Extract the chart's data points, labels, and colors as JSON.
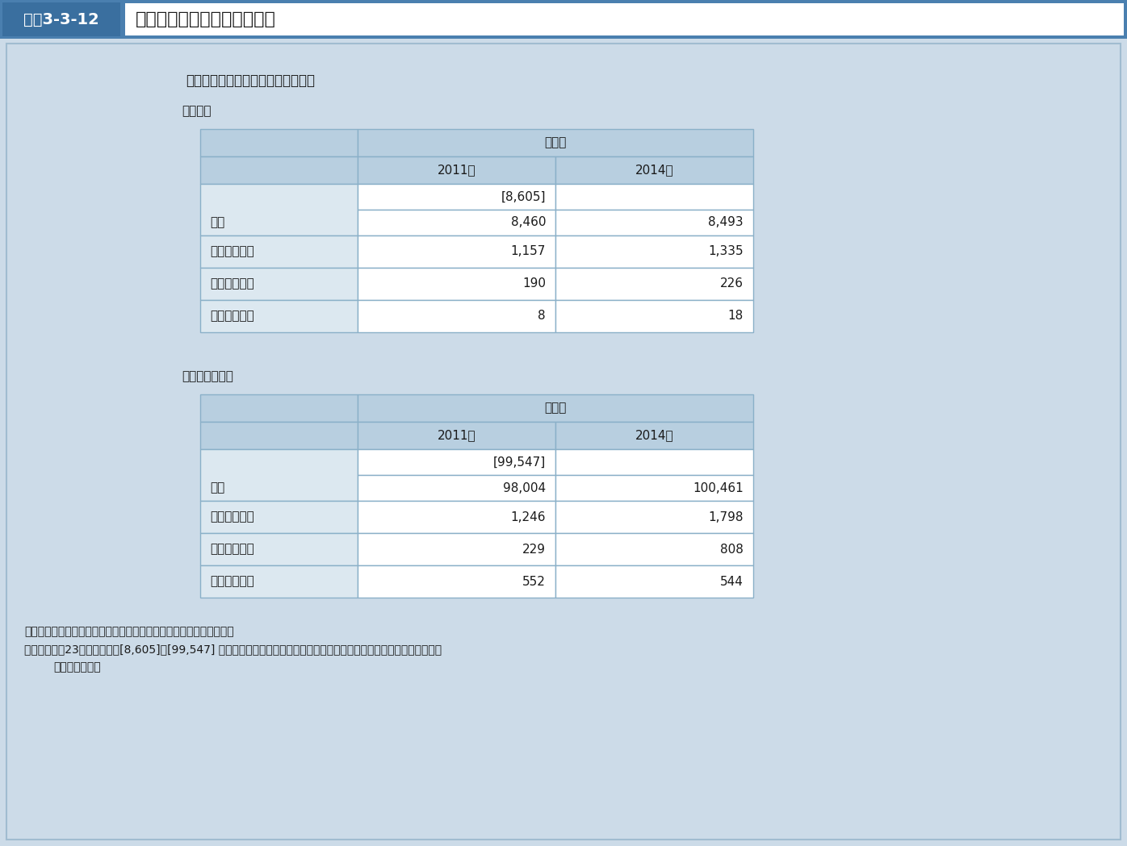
{
  "title_label": "図表3-3-12",
  "title_text": "遠隔医療システムの導入状況",
  "section_header": "【遠隔医療システムの導入施設数】",
  "table1_subtitle": "〈病院〉",
  "table2_subtitle": "〈一般診療所〉",
  "col_header_span": "施設数",
  "col_2011": "2011年",
  "col_2014": "2014年",
  "table1_rows": [
    {
      "label": "総数",
      "v2011_top": "[8,605]",
      "v2011": "8,460",
      "v2014": "8,493"
    },
    {
      "label": "遠隔画像診断",
      "v2011_top": null,
      "v2011": "1,157",
      "v2014": "1,335"
    },
    {
      "label": "遠隔病理診断",
      "v2011_top": null,
      "v2011": "190",
      "v2014": "226"
    },
    {
      "label": "遠隔在宅医療",
      "v2011_top": null,
      "v2011": "8",
      "v2014": "18"
    }
  ],
  "table2_rows": [
    {
      "label": "総数",
      "v2011_top": "[99,547]",
      "v2011": "98,004",
      "v2014": "100,461"
    },
    {
      "label": "遠隔画像診断",
      "v2011_top": null,
      "v2011": "1,246",
      "v2014": "1,798"
    },
    {
      "label": "遠隔病理診断",
      "v2011_top": null,
      "v2011": "229",
      "v2014": "808"
    },
    {
      "label": "遠隔在宅医療",
      "v2011_top": null,
      "v2011": "552",
      "v2014": "544"
    }
  ],
  "footnote1": "資料：厚生労働省政策統括官付参事官付保健統計室「医療施設調査」",
  "footnote2": "（注）　平成23年について、[8,605]、[99,547] は全国の数値。それ以外は宮城県の石巻医療圏、気仙沼医療圏及び福島県",
  "footnote3": "　　　を除いた数値。",
  "bg_color": "#ccdbe8",
  "outer_bg": "#c8d8e5",
  "header_bg": "#4a7faf",
  "header_text_color": "#ffffff",
  "table_header_bg": "#b8cfe0",
  "table_cell_bg": "#ffffff",
  "table_label_bg": "#dce8f0",
  "border_color": "#8ab0c8",
  "title_bar_color": "#4a7faf",
  "title_label_bg": "#3a6f9f"
}
